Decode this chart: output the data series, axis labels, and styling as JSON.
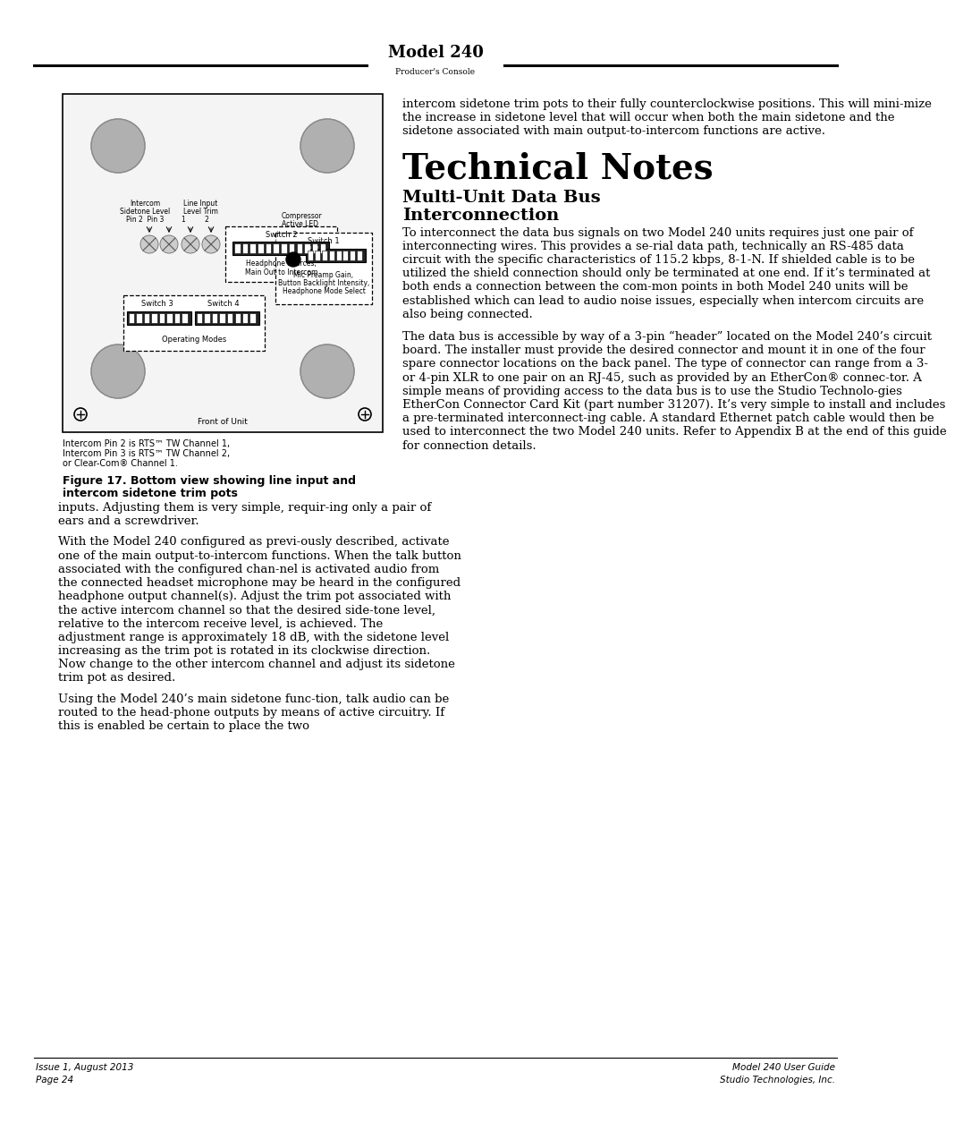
{
  "page_bg": "#ffffff",
  "header_title": "Model 240",
  "header_subtitle": "Producer's Console",
  "footer_left_line1": "Issue 1, August 2013",
  "footer_left_line2": "Page 24",
  "footer_right_line1": "Model 240 User Guide",
  "footer_right_line2": "Studio Technologies, Inc.",
  "right_col_intro": "intercom sidetone trim pots to their fully counterclockwise positions. This will mini-mize the increase in sidetone level that will occur when both the main sidetone and the sidetone associated with main output-to-intercom functions are active.",
  "section_title": "Technical Notes",
  "section_subtitle_line1": "Multi-Unit Data Bus",
  "section_subtitle_line2": "Interconnection",
  "right_col_para1": "To interconnect the data bus signals on two Model 240 units requires just one pair of interconnecting wires. This provides a se-rial data path, technically an RS-485 data circuit with the specific characteristics of 115.2 kbps, 8-1-N. If shielded cable is to be utilized the shield connection should only be terminated at one end. If it’s terminated at both ends a connection between the com-mon points in both Model 240 units will be established which can lead to audio noise issues, especially when intercom circuits are also being connected.",
  "right_col_para2": "The data bus is accessible by way of a 3-pin “header” located on the Model 240’s circuit board. The installer must provide the desired connector and mount it in one of the four spare connector locations on the back panel. The type of connector can range from a 3- or 4-pin XLR to one pair on an RJ-45, such as provided by an EtherCon® connec-tor. A simple means of providing access to the data bus is to use the Studio Technolo-gies EtherCon Connector Card Kit (part number 31207). It’s very simple to install and includes a pre-terminated interconnect-ing cable. A standard Ethernet patch cable would then be used to interconnect the two Model 240 units. Refer to Appendix B at the end of this guide for connection details.",
  "figure_caption_line1": "Figure 17. Bottom view showing line input and",
  "figure_caption_line2": "intercom sidetone trim pots",
  "figure_note_line1": "Intercom Pin 2 is RTS™ TW Channel 1,",
  "figure_note_line2": "Intercom Pin 3 is RTS™ TW Channel 2,",
  "figure_note_line3": "or Clear-Com® Channel 1.",
  "left_col_para1": "inputs. Adjusting them is very simple, requir-ing only a pair of ears and a screwdriver.",
  "left_col_para2": "With the Model 240 configured as previ-ously described, activate one of the main output-to-intercom functions. When the talk button associated with the configured chan-nel is activated audio from the connected headset microphone may be heard in the configured headphone output channel(s). Adjust the trim pot associated with the active intercom channel so that the desired side-tone level, relative to the intercom receive level, is achieved. The adjustment range is approximately 18 dB, with the sidetone level increasing as the trim pot is rotated in its clockwise direction. Now change to the other intercom channel and adjust its sidetone trim pot as desired.",
  "left_col_para3": "Using the Model 240’s main sidetone func-tion, talk audio can be routed to the head-phone outputs by means of active circuitry. If this is enabled be certain to place the two"
}
